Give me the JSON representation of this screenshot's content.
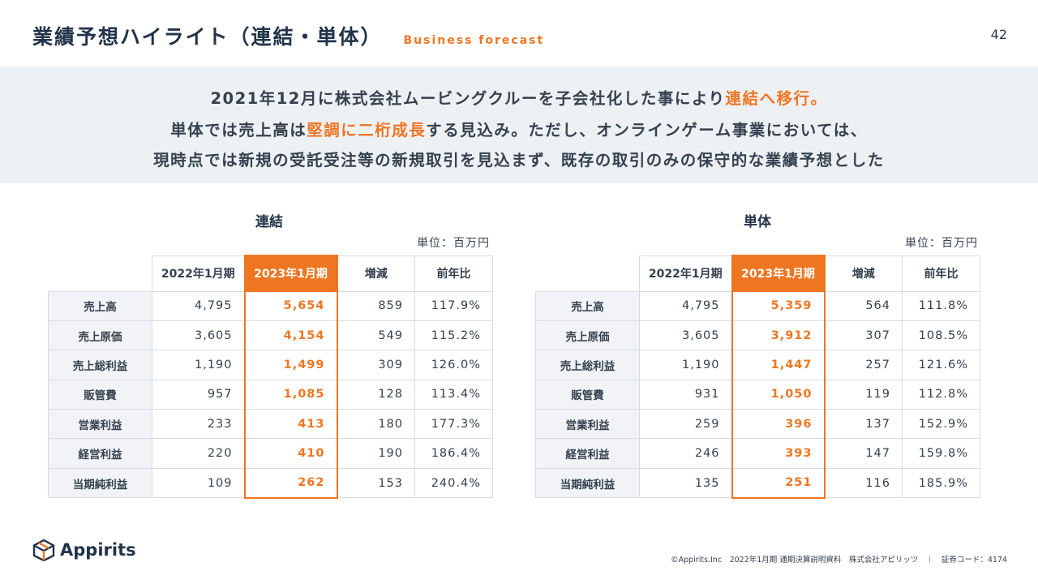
{
  "header": {
    "title": "業績予想ハイライト（連結・単体）",
    "subtitle": "Business forecast",
    "page_number": "42"
  },
  "summary": {
    "line1_a": "2021年12月に株式会社ムービングクルーを子会社化した事により",
    "line1_hl": "連結へ移行。",
    "line2_a": "単体では売上高は",
    "line2_hl": "堅調に二桁成長",
    "line2_b": "する見込み。ただし、オンラインゲーム事業においては、",
    "line3": "現時点では新規の受託受注等の新規取引を見込まず、既存の取引のみの保守的な業績予想とした"
  },
  "colors": {
    "accent": "#ee7623",
    "navy": "#22344a",
    "band": "#eef1f4"
  },
  "consolidated": {
    "title": "連結",
    "unit": "単位：百万円",
    "headers": [
      "2022年1月期",
      "2023年1月期",
      "増減",
      "前年比"
    ],
    "rows": [
      {
        "label": "売上高",
        "prev": "4,795",
        "fcst": "5,654",
        "diff": "859",
        "ratio": "117.9%"
      },
      {
        "label": "売上原価",
        "prev": "3,605",
        "fcst": "4,154",
        "diff": "549",
        "ratio": "115.2%"
      },
      {
        "label": "売上総利益",
        "prev": "1,190",
        "fcst": "1,499",
        "diff": "309",
        "ratio": "126.0%"
      },
      {
        "label": "販管費",
        "prev": "957",
        "fcst": "1,085",
        "diff": "128",
        "ratio": "113.4%"
      },
      {
        "label": "営業利益",
        "prev": "233",
        "fcst": "413",
        "diff": "180",
        "ratio": "177.3%"
      },
      {
        "label": "経営利益",
        "prev": "220",
        "fcst": "410",
        "diff": "190",
        "ratio": "186.4%"
      },
      {
        "label": "当期純利益",
        "prev": "109",
        "fcst": "262",
        "diff": "153",
        "ratio": "240.4%"
      }
    ]
  },
  "standalone": {
    "title": "単体",
    "unit": "単位：百万円",
    "headers": [
      "2022年1月期",
      "2023年1月期",
      "増減",
      "前年比"
    ],
    "rows": [
      {
        "label": "売上高",
        "prev": "4,795",
        "fcst": "5,359",
        "diff": "564",
        "ratio": "111.8%"
      },
      {
        "label": "売上原価",
        "prev": "3,605",
        "fcst": "3,912",
        "diff": "307",
        "ratio": "108.5%"
      },
      {
        "label": "売上総利益",
        "prev": "1,190",
        "fcst": "1,447",
        "diff": "257",
        "ratio": "121.6%"
      },
      {
        "label": "販管費",
        "prev": "931",
        "fcst": "1,050",
        "diff": "119",
        "ratio": "112.8%"
      },
      {
        "label": "営業利益",
        "prev": "259",
        "fcst": "396",
        "diff": "137",
        "ratio": "152.9%"
      },
      {
        "label": "経営利益",
        "prev": "246",
        "fcst": "393",
        "diff": "147",
        "ratio": "159.8%"
      },
      {
        "label": "当期純利益",
        "prev": "135",
        "fcst": "251",
        "diff": "116",
        "ratio": "185.9%"
      }
    ]
  },
  "footer": {
    "logo_icon": "cube-logo-icon",
    "logo_text": "Appirits",
    "text": "©Appirits.Inc　2022年1月期 通期決算説明資料　株式会社アピリッツ　｜　証券コード：4174"
  }
}
